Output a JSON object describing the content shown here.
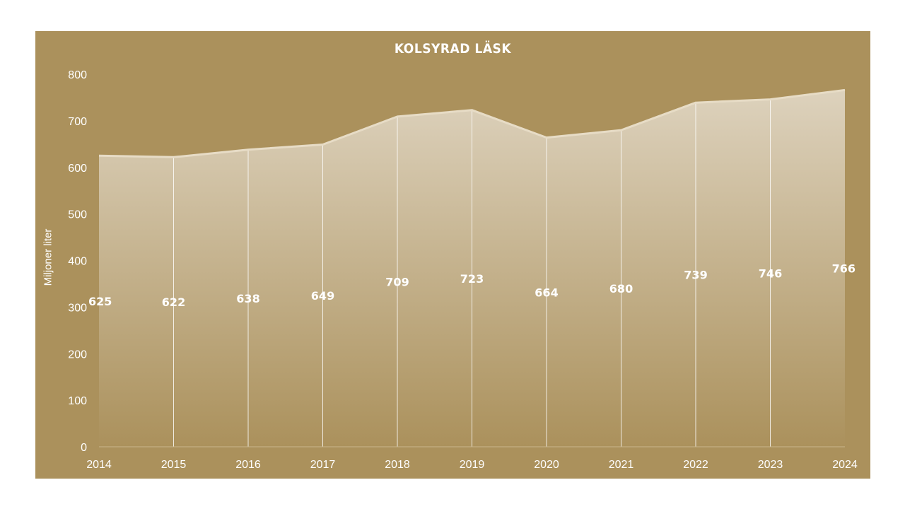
{
  "chart_data": {
    "type": "area",
    "title": "KOLSYRAD LÄSK",
    "ylabel": "Miljoner liter",
    "xlabel": "",
    "categories": [
      "2014",
      "2015",
      "2016",
      "2017",
      "2018",
      "2019",
      "2020",
      "2021",
      "2022",
      "2023",
      "2024"
    ],
    "values": [
      625,
      622,
      638,
      649,
      709,
      723,
      664,
      680,
      739,
      746,
      766
    ],
    "data_labels": [
      "625",
      "622",
      "638",
      "649",
      "709",
      "723",
      "664",
      "680",
      "739",
      "746",
      "766"
    ],
    "ylim": [
      0,
      800
    ],
    "yticks": [
      "0",
      "100",
      "200",
      "300",
      "400",
      "500",
      "600",
      "700",
      "800"
    ],
    "grid": false,
    "legend": "none",
    "colors": {
      "background": "#ab915c",
      "fill_top": "#ddd2bd",
      "fill_bottom": "#ab915c",
      "line": "#e7dcc6",
      "text": "#ffffff"
    }
  }
}
